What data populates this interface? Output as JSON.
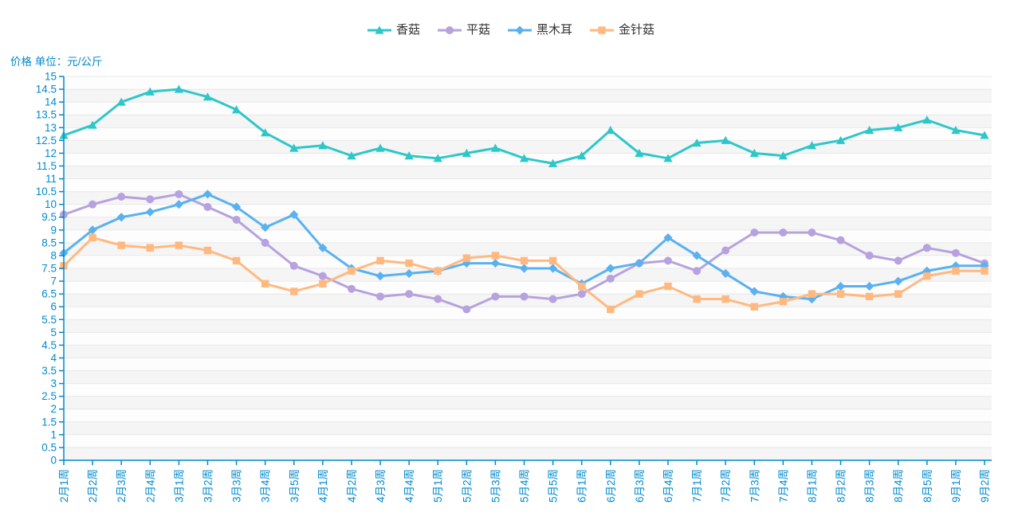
{
  "legend": {
    "items": [
      {
        "label": "香菇",
        "color": "#2ec7c9",
        "marker": "triangle"
      },
      {
        "label": "平菇",
        "color": "#b6a2de",
        "marker": "circle"
      },
      {
        "label": "黑木耳",
        "color": "#5ab1ef",
        "marker": "diamond"
      },
      {
        "label": "金针菇",
        "color": "#ffb980",
        "marker": "square"
      }
    ]
  },
  "chart_data": {
    "type": "line",
    "title": "价格 单位：元/公斤",
    "xlabel": "",
    "ylabel": "价格 单位：元/公斤",
    "ylim": [
      0,
      15
    ],
    "ytick_step": 0.5,
    "grid": true,
    "legend_position": "top-center",
    "axis_color": "#008acd",
    "grid_color": "#e8e8e8",
    "stripe_colors": [
      "rgba(250,250,250,0.3)",
      "rgba(200,200,200,0.18)"
    ],
    "text_color": "#333333",
    "categories": [
      "2月1周",
      "2月2周",
      "2月3周",
      "2月4周",
      "3月1周",
      "3月2周",
      "3月3周",
      "3月4周",
      "3月5周",
      "4月1周",
      "4月2周",
      "4月3周",
      "4月4周",
      "5月1周",
      "5月2周",
      "5月3周",
      "5月4周",
      "5月5周",
      "6月1周",
      "6月2周",
      "6月3周",
      "6月4周",
      "7月1周",
      "7月2周",
      "7月3周",
      "7月4周",
      "8月1周",
      "8月2周",
      "8月3周",
      "8月4周",
      "8月5周",
      "9月1周",
      "9月2周"
    ],
    "series": [
      {
        "name": "香菇",
        "color": "#2ec7c9",
        "marker": "triangle",
        "values": [
          12.7,
          13.1,
          14.0,
          14.4,
          14.5,
          14.2,
          13.7,
          12.8,
          12.2,
          12.3,
          11.9,
          12.2,
          11.9,
          11.8,
          12.0,
          12.2,
          11.8,
          11.6,
          11.9,
          12.9,
          12.0,
          11.8,
          12.4,
          12.5,
          12.0,
          11.9,
          12.3,
          12.5,
          12.9,
          13.0,
          13.3,
          12.9,
          12.7
        ]
      },
      {
        "name": "平菇",
        "color": "#b6a2de",
        "marker": "circle",
        "values": [
          9.6,
          10.0,
          10.3,
          10.2,
          10.4,
          9.9,
          9.4,
          8.5,
          7.6,
          7.2,
          6.7,
          6.4,
          6.5,
          6.3,
          5.9,
          6.4,
          6.4,
          6.3,
          6.5,
          7.1,
          7.7,
          7.8,
          7.4,
          8.2,
          8.9,
          8.9,
          8.9,
          8.6,
          8.0,
          7.8,
          8.3,
          8.1,
          7.7
        ]
      },
      {
        "name": "黑木耳",
        "color": "#5ab1ef",
        "marker": "diamond",
        "values": [
          8.1,
          9.0,
          9.5,
          9.7,
          10.0,
          10.4,
          9.9,
          9.1,
          9.6,
          8.3,
          7.5,
          7.2,
          7.3,
          7.4,
          7.7,
          7.7,
          7.5,
          7.5,
          6.9,
          7.5,
          7.7,
          8.7,
          8.0,
          7.3,
          6.6,
          6.4,
          6.3,
          6.8,
          6.8,
          7.0,
          7.4,
          7.6,
          7.6
        ]
      },
      {
        "name": "金针菇",
        "color": "#ffb980",
        "marker": "square",
        "values": [
          7.6,
          8.7,
          8.4,
          8.3,
          8.4,
          8.2,
          7.8,
          6.9,
          6.6,
          6.9,
          7.4,
          7.8,
          7.7,
          7.4,
          7.9,
          8.0,
          7.8,
          7.8,
          6.8,
          5.9,
          6.5,
          6.8,
          6.3,
          6.3,
          6.0,
          6.2,
          6.5,
          6.5,
          6.4,
          6.5,
          7.2,
          7.4,
          7.4
        ]
      }
    ]
  }
}
